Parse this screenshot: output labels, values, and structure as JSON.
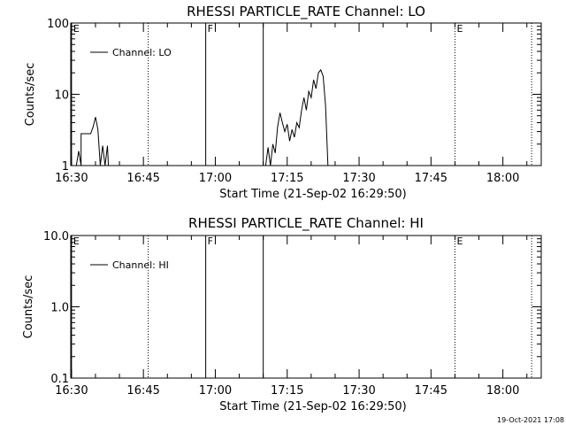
{
  "footer": {
    "timestamp": "19-Oct-2021 17:08"
  },
  "chart_data": [
    {
      "type": "line",
      "title": "RHESSI PARTICLE_RATE Channel: LO",
      "xlabel": "Start Time (21-Sep-02 16:29:50)",
      "ylabel": "Counts/sec",
      "y_scale": "log",
      "ylim": [
        1,
        100
      ],
      "y_ticks": [
        1,
        10,
        100
      ],
      "y_tick_labels": [
        "1",
        "10",
        "100"
      ],
      "x_time_start": "16:30",
      "x_time_end": "18:08",
      "x_ticks": [
        "16:30",
        "16:45",
        "17:00",
        "17:15",
        "17:30",
        "17:45",
        "18:00"
      ],
      "legend": {
        "position": "top-left",
        "entries": [
          "Channel: LO"
        ]
      },
      "markers": [
        {
          "time": "16:30",
          "label": "E",
          "style": "solid"
        },
        {
          "time": "16:46",
          "label": "",
          "style": "dotted"
        },
        {
          "time": "16:58",
          "label": "F",
          "style": "solid"
        },
        {
          "time": "17:10",
          "label": "",
          "style": "solid"
        },
        {
          "time": "17:50",
          "label": "E",
          "style": "dotted"
        },
        {
          "time": "18:06",
          "label": "",
          "style": "dotted"
        }
      ],
      "segments": [
        {
          "name": "Channel: LO",
          "x": [
            "16:31",
            "16:31.5",
            "16:32",
            "16:32",
            "16:34",
            "16:34.5",
            "16:35",
            "16:35.5",
            "16:36",
            "16:36.5",
            "16:37",
            "16:37.5",
            "16:37.7"
          ],
          "y": [
            1,
            1.6,
            1,
            2.8,
            2.8,
            3.5,
            4.8,
            3.2,
            1,
            1.9,
            1,
            1.9,
            1
          ]
        },
        {
          "name": "Channel: LO",
          "x": [
            "17:10.5",
            "17:11",
            "17:11.5",
            "17:12",
            "17:12.5",
            "17:13",
            "17:13.5",
            "17:14",
            "17:14.5",
            "17:15",
            "17:15.5",
            "17:16",
            "17:16.5",
            "17:17",
            "17:17.5",
            "17:18",
            "17:18.5",
            "17:19",
            "17:19.5",
            "17:20",
            "17:20.5",
            "17:21",
            "17:21.5",
            "17:22",
            "17:22.5",
            "17:23",
            "17:23.5"
          ],
          "y": [
            1,
            1.8,
            1,
            2,
            1.5,
            3.5,
            5.5,
            4,
            3,
            3.8,
            2.2,
            3.2,
            2.5,
            4,
            3.4,
            6,
            9,
            6,
            11,
            9,
            16,
            12,
            20,
            22,
            18,
            7,
            1
          ]
        }
      ]
    },
    {
      "type": "line",
      "title": "RHESSI PARTICLE_RATE Channel: HI",
      "xlabel": "Start Time (21-Sep-02 16:29:50)",
      "ylabel": "Counts/sec",
      "y_scale": "log",
      "ylim": [
        0.1,
        10
      ],
      "y_ticks": [
        0.1,
        1,
        10
      ],
      "y_tick_labels": [
        "0.1",
        "1.0",
        "10.0"
      ],
      "x_time_start": "16:30",
      "x_time_end": "18:08",
      "x_ticks": [
        "16:30",
        "16:45",
        "17:00",
        "17:15",
        "17:30",
        "17:45",
        "18:00"
      ],
      "legend": {
        "position": "top-left",
        "entries": [
          "Channel: HI"
        ]
      },
      "markers": [
        {
          "time": "16:30",
          "label": "E",
          "style": "solid"
        },
        {
          "time": "16:46",
          "label": "",
          "style": "dotted"
        },
        {
          "time": "16:58",
          "label": "F",
          "style": "solid"
        },
        {
          "time": "17:10",
          "label": "",
          "style": "solid"
        },
        {
          "time": "17:50",
          "label": "E",
          "style": "dotted"
        },
        {
          "time": "18:06",
          "label": "",
          "style": "dotted"
        }
      ],
      "segments": []
    }
  ]
}
